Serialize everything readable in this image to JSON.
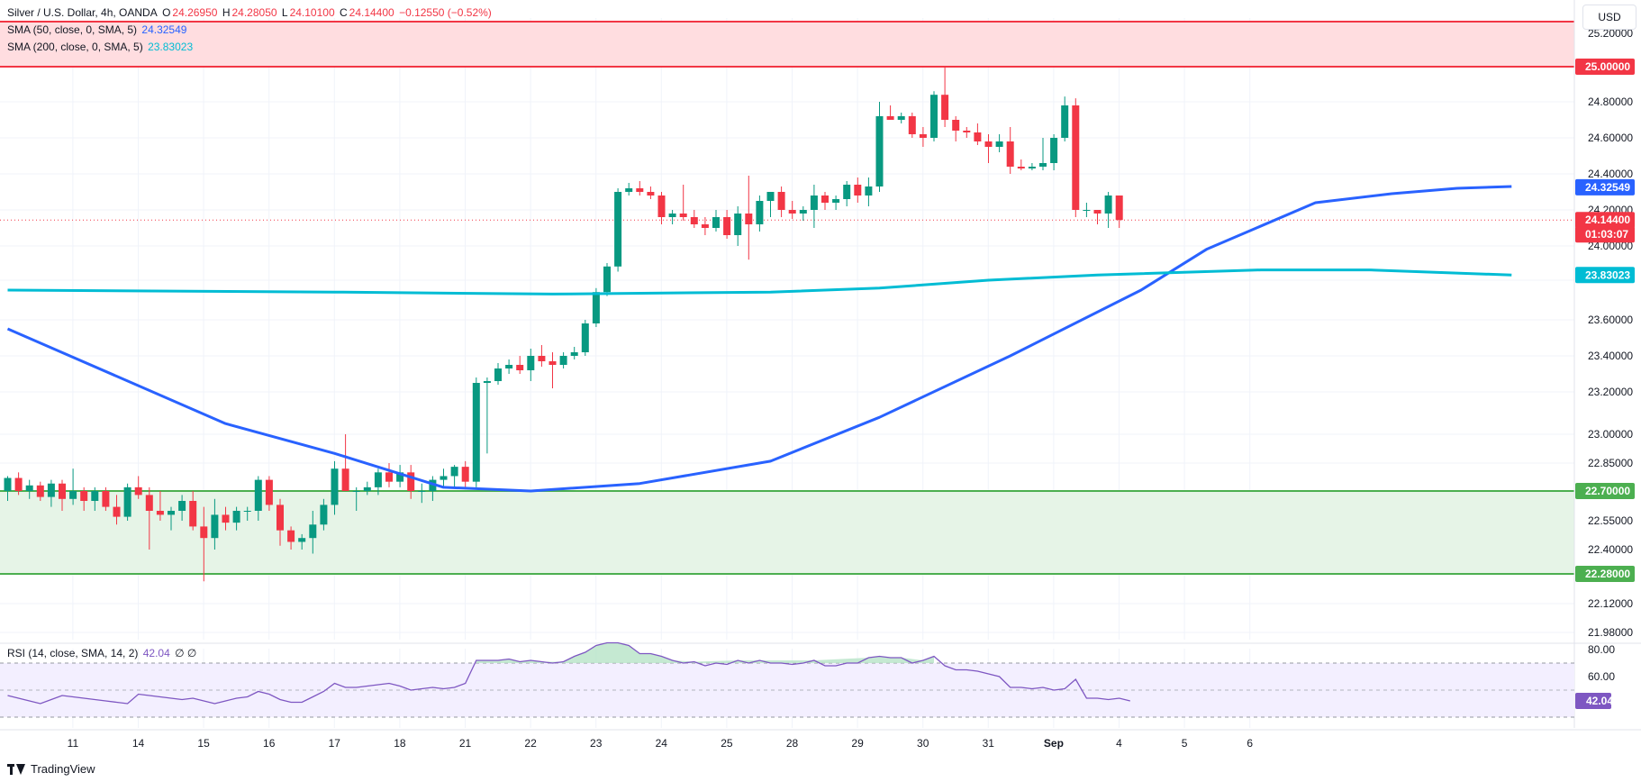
{
  "header": {
    "symbol": "Silver / U.S. Dollar, 4h, OANDA",
    "o_label": "O",
    "o_value": "24.26950",
    "h_label": "H",
    "h_value": "24.28050",
    "l_label": "L",
    "l_value": "24.10100",
    "c_label": "C",
    "c_value": "24.14400",
    "change": "−0.12550 (−0.52%)"
  },
  "indicators": {
    "sma50_label": "SMA (50, close, 0, SMA, 5)",
    "sma50_value": "24.32549",
    "sma50_color": "#2962ff",
    "sma200_label": "SMA (200, close, 0, SMA, 5)",
    "sma200_value": "23.83023",
    "sma200_color": "#00bcd4",
    "rsi_label": "RSI (14, close, SMA, 14, 2)",
    "rsi_value": "42.04",
    "rsi_extra": "∅ ∅",
    "rsi_color": "#7e57c2"
  },
  "currency": "USD",
  "branding": "TradingView",
  "chart_data": {
    "type": "candlestick",
    "symbol": "Silver / U.S. Dollar",
    "interval": "4h",
    "y_axis": {
      "ticks": [
        25.2,
        25.0,
        24.8,
        24.6,
        24.4,
        24.2,
        24.0,
        23.8,
        23.6,
        23.4,
        23.2,
        23.0,
        22.85,
        22.7,
        22.55,
        22.4,
        22.28,
        22.12,
        21.98
      ],
      "tick_labels": [
        "25.20000",
        "",
        "24.80000",
        "24.60000",
        "24.40000",
        "24.20000",
        "24.00000",
        "",
        "23.60000",
        "23.40000",
        "23.20000",
        "23.00000",
        "22.85000",
        "",
        "22.55000",
        "22.40000",
        "",
        "22.12000",
        "21.98000"
      ],
      "range": [
        21.98,
        25.3
      ]
    },
    "x_axis": {
      "labels": [
        "11",
        "14",
        "15",
        "16",
        "17",
        "18",
        "21",
        "22",
        "23",
        "24",
        "25",
        "28",
        "29",
        "30",
        "31",
        "Sep",
        "4",
        "5",
        "6"
      ],
      "label_bar_index": [
        4,
        10,
        16,
        22,
        28,
        34,
        40,
        46,
        52,
        58,
        64,
        70,
        76,
        82,
        88,
        94,
        100,
        106,
        112
      ]
    },
    "price_labels": [
      {
        "value": "25.00000",
        "color": "#f23645"
      },
      {
        "value": "24.32549",
        "color": "#2962ff"
      },
      {
        "value": "24.14400",
        "color": "#f23645"
      },
      {
        "value": "01:03:07",
        "color": "#f23645"
      },
      {
        "value": "23.83023",
        "color": "#00bcd4"
      },
      {
        "value": "22.70000",
        "color": "#4caf50"
      },
      {
        "value": "22.28000",
        "color": "#4caf50"
      }
    ],
    "zones": [
      {
        "name": "resistance",
        "from": 25.0,
        "to": 25.27,
        "fill": "#ffdde0",
        "line": "#f23645"
      },
      {
        "name": "support",
        "from": 22.28,
        "to": 22.7,
        "fill": "#e6f4e7",
        "line": "#4caf50"
      }
    ],
    "last_price": 24.144,
    "ohlc": [
      [
        22.7,
        22.78,
        22.65,
        22.77
      ],
      [
        22.77,
        22.8,
        22.68,
        22.7
      ],
      [
        22.7,
        22.76,
        22.66,
        22.73
      ],
      [
        22.73,
        22.75,
        22.65,
        22.67
      ],
      [
        22.67,
        22.76,
        22.62,
        22.74
      ],
      [
        22.74,
        22.76,
        22.6,
        22.66
      ],
      [
        22.66,
        22.82,
        22.63,
        22.7
      ],
      [
        22.7,
        22.72,
        22.6,
        22.65
      ],
      [
        22.65,
        22.72,
        22.6,
        22.7
      ],
      [
        22.7,
        22.72,
        22.6,
        22.62
      ],
      [
        22.62,
        22.68,
        22.53,
        22.57
      ],
      [
        22.57,
        22.74,
        22.55,
        22.72
      ],
      [
        22.72,
        22.78,
        22.66,
        22.68
      ],
      [
        22.68,
        22.72,
        22.4,
        22.6
      ],
      [
        22.6,
        22.7,
        22.55,
        22.58
      ],
      [
        22.58,
        22.62,
        22.5,
        22.6
      ],
      [
        22.6,
        22.68,
        22.55,
        22.65
      ],
      [
        22.65,
        22.7,
        22.5,
        22.52
      ],
      [
        22.52,
        22.62,
        22.24,
        22.46
      ],
      [
        22.46,
        22.66,
        22.4,
        22.58
      ],
      [
        22.58,
        22.62,
        22.5,
        22.54
      ],
      [
        22.54,
        22.62,
        22.5,
        22.6
      ],
      [
        22.6,
        22.62,
        22.55,
        22.6
      ],
      [
        22.6,
        22.78,
        22.55,
        22.76
      ],
      [
        22.76,
        22.78,
        22.6,
        22.63
      ],
      [
        22.63,
        22.66,
        22.42,
        22.5
      ],
      [
        22.5,
        22.52,
        22.4,
        22.44
      ],
      [
        22.44,
        22.48,
        22.4,
        22.46
      ],
      [
        22.46,
        22.6,
        22.38,
        22.53
      ],
      [
        22.53,
        22.66,
        22.5,
        22.63
      ],
      [
        22.63,
        22.86,
        22.58,
        22.82
      ],
      [
        22.82,
        23.0,
        22.72,
        22.7
      ],
      [
        22.7,
        22.72,
        22.6,
        22.7
      ],
      [
        22.7,
        22.75,
        22.68,
        22.72
      ],
      [
        22.72,
        22.82,
        22.68,
        22.8
      ],
      [
        22.8,
        22.85,
        22.72,
        22.75
      ],
      [
        22.75,
        22.84,
        22.72,
        22.8
      ],
      [
        22.8,
        22.84,
        22.66,
        22.7
      ],
      [
        22.7,
        22.74,
        22.64,
        22.7
      ],
      [
        22.7,
        22.78,
        22.65,
        22.76
      ],
      [
        22.76,
        22.82,
        22.72,
        22.78
      ],
      [
        22.78,
        22.84,
        22.72,
        22.83
      ],
      [
        22.83,
        22.86,
        22.72,
        22.75
      ],
      [
        22.75,
        23.28,
        22.72,
        23.25
      ],
      [
        23.25,
        23.28,
        22.9,
        23.26
      ],
      [
        23.26,
        23.36,
        23.24,
        23.33
      ],
      [
        23.33,
        23.38,
        23.3,
        23.35
      ],
      [
        23.35,
        23.4,
        23.3,
        23.32
      ],
      [
        23.32,
        23.44,
        23.26,
        23.4
      ],
      [
        23.4,
        23.46,
        23.34,
        23.37
      ],
      [
        23.37,
        23.42,
        23.22,
        23.35
      ],
      [
        23.35,
        23.42,
        23.33,
        23.4
      ],
      [
        23.4,
        23.45,
        23.38,
        23.42
      ],
      [
        23.42,
        23.6,
        23.4,
        23.58
      ],
      [
        23.58,
        23.76,
        23.56,
        23.74
      ],
      [
        23.74,
        23.9,
        23.72,
        23.88
      ],
      [
        23.88,
        24.32,
        23.85,
        24.3
      ],
      [
        24.3,
        24.35,
        24.28,
        24.32
      ],
      [
        24.32,
        24.36,
        24.28,
        24.3
      ],
      [
        24.3,
        24.33,
        24.26,
        24.28
      ],
      [
        24.28,
        24.3,
        24.12,
        24.16
      ],
      [
        24.16,
        24.2,
        24.12,
        24.18
      ],
      [
        24.18,
        24.34,
        24.14,
        24.16
      ],
      [
        24.16,
        24.2,
        24.1,
        24.12
      ],
      [
        24.12,
        24.16,
        24.06,
        24.1
      ],
      [
        24.1,
        24.2,
        24.08,
        24.16
      ],
      [
        24.16,
        24.2,
        24.04,
        24.06
      ],
      [
        24.06,
        24.22,
        24.0,
        24.18
      ],
      [
        24.18,
        24.39,
        23.92,
        24.12
      ],
      [
        24.12,
        24.28,
        24.08,
        24.25
      ],
      [
        24.25,
        24.3,
        24.16,
        24.3
      ],
      [
        24.3,
        24.33,
        24.16,
        24.2
      ],
      [
        24.2,
        24.25,
        24.15,
        24.18
      ],
      [
        24.18,
        24.22,
        24.14,
        24.2
      ],
      [
        24.2,
        24.34,
        24.1,
        24.28
      ],
      [
        24.28,
        24.3,
        24.2,
        24.24
      ],
      [
        24.24,
        24.28,
        24.2,
        24.26
      ],
      [
        24.26,
        24.36,
        24.22,
        24.34
      ],
      [
        24.34,
        24.38,
        24.24,
        24.28
      ],
      [
        24.28,
        24.38,
        24.22,
        24.33
      ],
      [
        24.33,
        24.8,
        24.3,
        24.72
      ],
      [
        24.72,
        24.78,
        24.7,
        24.7
      ],
      [
        24.7,
        24.74,
        24.68,
        24.72
      ],
      [
        24.72,
        24.74,
        24.6,
        24.62
      ],
      [
        24.62,
        24.66,
        24.55,
        24.6
      ],
      [
        24.6,
        24.86,
        24.58,
        24.84
      ],
      [
        24.84,
        25.0,
        24.66,
        24.7
      ],
      [
        24.7,
        24.72,
        24.58,
        24.64
      ],
      [
        24.64,
        24.66,
        24.6,
        24.63
      ],
      [
        24.63,
        24.68,
        24.56,
        24.58
      ],
      [
        24.58,
        24.62,
        24.46,
        24.55
      ],
      [
        24.55,
        24.62,
        24.52,
        24.58
      ],
      [
        24.58,
        24.66,
        24.4,
        24.44
      ],
      [
        24.44,
        24.48,
        24.42,
        24.43
      ],
      [
        24.43,
        24.46,
        24.42,
        24.44
      ],
      [
        24.44,
        24.6,
        24.42,
        24.46
      ],
      [
        24.46,
        24.62,
        24.42,
        24.6
      ],
      [
        24.6,
        24.83,
        24.58,
        24.78
      ],
      [
        24.78,
        24.82,
        24.16,
        24.2
      ],
      [
        24.2,
        24.24,
        24.16,
        24.2
      ],
      [
        24.2,
        24.2,
        24.12,
        24.18
      ],
      [
        24.18,
        24.3,
        24.1,
        24.28
      ],
      [
        24.28,
        24.28,
        24.1,
        24.144
      ]
    ],
    "sma50": [
      [
        0,
        23.55
      ],
      [
        20,
        23.05
      ],
      [
        30,
        22.9
      ],
      [
        40,
        22.72
      ],
      [
        48,
        22.7
      ],
      [
        58,
        22.74
      ],
      [
        70,
        22.86
      ],
      [
        80,
        23.08
      ],
      [
        92,
        23.4
      ],
      [
        104,
        23.75
      ],
      [
        110,
        23.98
      ],
      [
        120,
        24.24
      ],
      [
        127,
        24.29
      ],
      [
        133,
        24.32
      ],
      [
        138,
        24.33
      ]
    ],
    "sma200": [
      [
        0,
        23.75
      ],
      [
        30,
        23.74
      ],
      [
        50,
        23.73
      ],
      [
        70,
        23.74
      ],
      [
        80,
        23.76
      ],
      [
        90,
        23.8
      ],
      [
        100,
        23.83
      ],
      [
        115,
        23.86
      ],
      [
        125,
        23.86
      ],
      [
        138,
        23.83
      ]
    ],
    "rsi": {
      "ticks": [
        80,
        60
      ],
      "tick_labels": [
        "80.00",
        "60.00"
      ],
      "upper": 70,
      "lower": 30,
      "range": [
        26,
        86
      ],
      "values": [
        46,
        44,
        42,
        40,
        43,
        46,
        45,
        44,
        43,
        42,
        41,
        40,
        47,
        46,
        45,
        44,
        43,
        44,
        42,
        40,
        42,
        44,
        45,
        49,
        47,
        43,
        41,
        41,
        45,
        49,
        55,
        52,
        52,
        53,
        54,
        55,
        53,
        50,
        51,
        52,
        51,
        52,
        55,
        72,
        72,
        72,
        73,
        71,
        72,
        71,
        70,
        71,
        75,
        78,
        83,
        85,
        85,
        83,
        77,
        77,
        75,
        72,
        70,
        71,
        68,
        70,
        69,
        72,
        70,
        72,
        70,
        70,
        69,
        70,
        72,
        68,
        68,
        70,
        70,
        74,
        75,
        74,
        74,
        70,
        72,
        75,
        68,
        65,
        65,
        64,
        62,
        60,
        52,
        52,
        51,
        52,
        50,
        51,
        58,
        44,
        44,
        43,
        44,
        42
      ]
    }
  }
}
